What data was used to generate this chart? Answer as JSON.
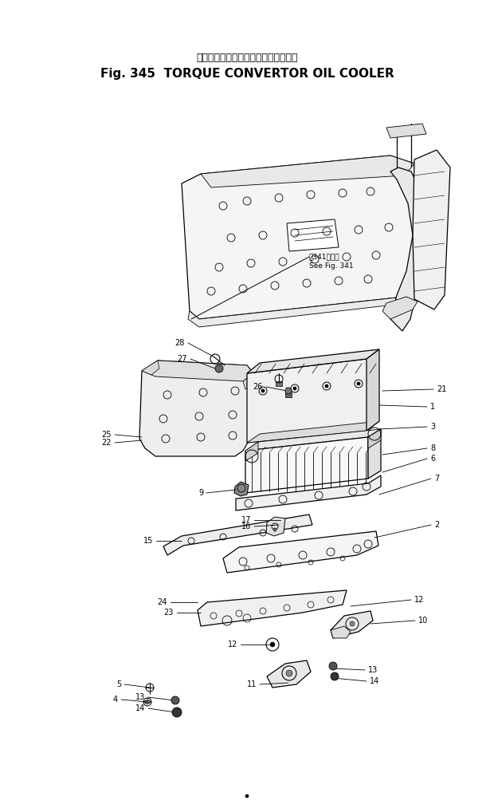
{
  "title_jp": "トルク　コンバータ　オイル　クーラ",
  "title_en": "Fig. 345  TORQUE CONVERTOR OIL COOLER",
  "bg_color": "#ffffff",
  "lc": "#000000",
  "fig_width": 6.2,
  "fig_height": 10.18,
  "dpi": 100
}
